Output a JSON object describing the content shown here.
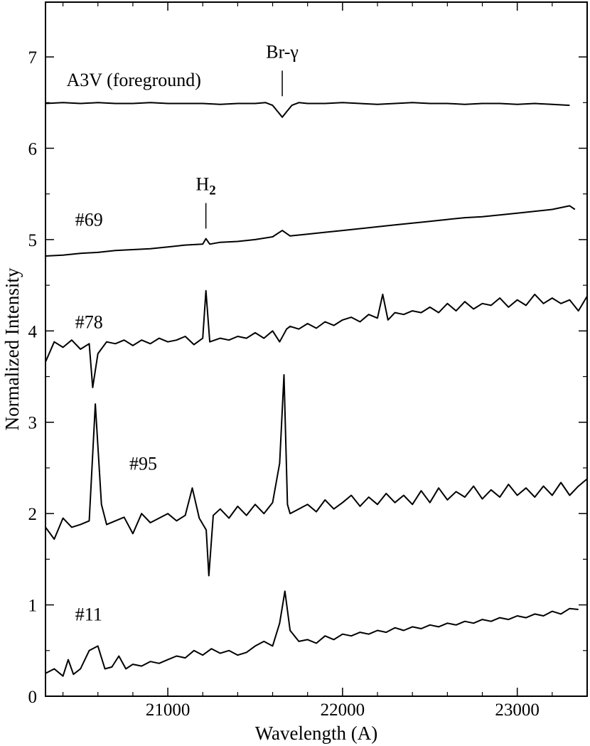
{
  "chart_data": {
    "type": "line",
    "title": "",
    "xlabel": "Wavelength (A)",
    "ylabel": "Normalized Intensity",
    "xlim": [
      20300,
      23400
    ],
    "ylim": [
      0,
      7.6
    ],
    "x_ticks": [
      21000,
      22000,
      23000
    ],
    "y_ticks": [
      0,
      1,
      2,
      3,
      4,
      5,
      6,
      7
    ],
    "grid": false,
    "annotations": [
      {
        "text": "Br-γ",
        "x": 21655,
        "y_from": 6.57,
        "y_to": 6.85
      },
      {
        "text": "H",
        "subscript": "2",
        "x": 21218,
        "y_from": 5.12,
        "y_to": 5.4
      }
    ],
    "series": [
      {
        "name": "A3V (foreground)",
        "x": [
          20300,
          20400,
          20500,
          20600,
          20700,
          20800,
          20900,
          21000,
          21100,
          21200,
          21300,
          21400,
          21500,
          21560,
          21600,
          21630,
          21655,
          21680,
          21710,
          21750,
          21800,
          21900,
          22000,
          22100,
          22200,
          22300,
          22400,
          22500,
          22600,
          22700,
          22800,
          22900,
          23000,
          23100,
          23200,
          23300
        ],
        "values": [
          6.49,
          6.5,
          6.49,
          6.5,
          6.49,
          6.49,
          6.5,
          6.49,
          6.49,
          6.49,
          6.48,
          6.49,
          6.49,
          6.5,
          6.47,
          6.4,
          6.34,
          6.4,
          6.47,
          6.5,
          6.49,
          6.49,
          6.5,
          6.49,
          6.48,
          6.49,
          6.5,
          6.49,
          6.49,
          6.48,
          6.49,
          6.49,
          6.48,
          6.49,
          6.48,
          6.47
        ]
      },
      {
        "name": "#69",
        "x": [
          20300,
          20400,
          20500,
          20600,
          20700,
          20800,
          20900,
          21000,
          21100,
          21200,
          21218,
          21240,
          21300,
          21400,
          21500,
          21600,
          21655,
          21700,
          21800,
          21900,
          22000,
          22100,
          22200,
          22300,
          22400,
          22500,
          22600,
          22700,
          22800,
          22900,
          23000,
          23100,
          23200,
          23300,
          23330
        ],
        "values": [
          4.82,
          4.83,
          4.85,
          4.86,
          4.88,
          4.89,
          4.9,
          4.92,
          4.94,
          4.95,
          5.01,
          4.95,
          4.97,
          4.98,
          5.0,
          5.03,
          5.1,
          5.04,
          5.06,
          5.08,
          5.1,
          5.12,
          5.14,
          5.16,
          5.18,
          5.2,
          5.22,
          5.24,
          5.25,
          5.27,
          5.29,
          5.31,
          5.33,
          5.37,
          5.33
        ]
      },
      {
        "name": "#78",
        "x": [
          20300,
          20350,
          20400,
          20450,
          20500,
          20550,
          20570,
          20600,
          20650,
          20700,
          20750,
          20800,
          20850,
          20900,
          20950,
          21000,
          21050,
          21100,
          21150,
          21200,
          21218,
          21240,
          21300,
          21350,
          21400,
          21450,
          21500,
          21550,
          21600,
          21640,
          21680,
          21700,
          21750,
          21800,
          21850,
          21900,
          21950,
          22000,
          22050,
          22100,
          22150,
          22200,
          22230,
          22260,
          22300,
          22350,
          22400,
          22450,
          22500,
          22550,
          22600,
          22650,
          22700,
          22750,
          22800,
          22850,
          22900,
          22950,
          23000,
          23050,
          23100,
          23150,
          23200,
          23250,
          23300,
          23350,
          23400
        ],
        "values": [
          3.66,
          3.88,
          3.82,
          3.9,
          3.8,
          3.86,
          3.38,
          3.75,
          3.88,
          3.86,
          3.9,
          3.84,
          3.9,
          3.86,
          3.92,
          3.88,
          3.9,
          3.94,
          3.85,
          3.92,
          4.44,
          3.88,
          3.92,
          3.9,
          3.94,
          3.92,
          3.98,
          3.92,
          4.0,
          3.88,
          4.02,
          4.05,
          4.02,
          4.08,
          4.03,
          4.1,
          4.06,
          4.12,
          4.15,
          4.1,
          4.18,
          4.14,
          4.4,
          4.12,
          4.2,
          4.18,
          4.22,
          4.2,
          4.26,
          4.2,
          4.3,
          4.22,
          4.32,
          4.24,
          4.3,
          4.28,
          4.36,
          4.26,
          4.34,
          4.28,
          4.4,
          4.3,
          4.36,
          4.3,
          4.34,
          4.22,
          4.38
        ]
      },
      {
        "name": "#95",
        "x": [
          20300,
          20350,
          20400,
          20450,
          20500,
          20550,
          20585,
          20620,
          20650,
          20700,
          20750,
          20800,
          20850,
          20900,
          20950,
          21000,
          21050,
          21100,
          21140,
          21180,
          21220,
          21235,
          21260,
          21300,
          21350,
          21400,
          21450,
          21500,
          21550,
          21600,
          21640,
          21665,
          21685,
          21700,
          21750,
          21800,
          21850,
          21900,
          21950,
          22000,
          22050,
          22100,
          22150,
          22200,
          22250,
          22300,
          22350,
          22400,
          22450,
          22500,
          22550,
          22600,
          22650,
          22700,
          22750,
          22800,
          22850,
          22900,
          22950,
          23000,
          23050,
          23100,
          23150,
          23200,
          23250,
          23300,
          23350,
          23400
        ],
        "values": [
          1.85,
          1.72,
          1.95,
          1.85,
          1.88,
          1.92,
          3.2,
          2.1,
          1.88,
          1.92,
          1.96,
          1.78,
          2.0,
          1.9,
          1.95,
          2.0,
          1.92,
          1.98,
          2.28,
          1.95,
          1.82,
          1.32,
          1.98,
          2.05,
          1.95,
          2.08,
          1.98,
          2.1,
          2.0,
          2.12,
          2.55,
          3.52,
          2.1,
          2.0,
          2.05,
          2.1,
          2.02,
          2.15,
          2.05,
          2.12,
          2.2,
          2.08,
          2.18,
          2.1,
          2.22,
          2.12,
          2.2,
          2.1,
          2.25,
          2.12,
          2.28,
          2.15,
          2.24,
          2.18,
          2.3,
          2.16,
          2.26,
          2.18,
          2.32,
          2.2,
          2.28,
          2.18,
          2.3,
          2.2,
          2.34,
          2.2,
          2.3,
          2.38
        ]
      },
      {
        "name": "#11",
        "x": [
          20300,
          20350,
          20400,
          20430,
          20460,
          20500,
          20550,
          20600,
          20640,
          20680,
          20720,
          20760,
          20800,
          20850,
          20900,
          20950,
          21000,
          21050,
          21100,
          21150,
          21200,
          21250,
          21300,
          21350,
          21400,
          21450,
          21500,
          21550,
          21600,
          21640,
          21670,
          21700,
          21750,
          21800,
          21850,
          21900,
          21950,
          22000,
          22050,
          22100,
          22150,
          22200,
          22250,
          22300,
          22350,
          22400,
          22450,
          22500,
          22550,
          22600,
          22650,
          22700,
          22750,
          22800,
          22850,
          22900,
          22950,
          23000,
          23050,
          23100,
          23150,
          23200,
          23250,
          23300,
          23350
        ],
        "values": [
          0.25,
          0.3,
          0.22,
          0.4,
          0.24,
          0.3,
          0.5,
          0.55,
          0.3,
          0.32,
          0.44,
          0.3,
          0.35,
          0.33,
          0.38,
          0.36,
          0.4,
          0.44,
          0.42,
          0.5,
          0.45,
          0.52,
          0.47,
          0.5,
          0.45,
          0.48,
          0.55,
          0.6,
          0.55,
          0.8,
          1.15,
          0.72,
          0.6,
          0.62,
          0.58,
          0.66,
          0.62,
          0.68,
          0.66,
          0.7,
          0.68,
          0.72,
          0.7,
          0.75,
          0.72,
          0.76,
          0.74,
          0.78,
          0.76,
          0.8,
          0.78,
          0.82,
          0.8,
          0.84,
          0.82,
          0.86,
          0.84,
          0.88,
          0.86,
          0.9,
          0.88,
          0.93,
          0.9,
          0.96,
          0.95
        ]
      }
    ],
    "series_labels": [
      {
        "text": "A3V (foreground)",
        "x": 20420,
        "y": 6.68
      },
      {
        "text": "#69",
        "x": 20470,
        "y": 5.15
      },
      {
        "text": "#78",
        "x": 20470,
        "y": 4.03
      },
      {
        "text": "#95",
        "x": 20780,
        "y": 2.48
      },
      {
        "text": "#11",
        "x": 20470,
        "y": 0.83
      }
    ]
  }
}
